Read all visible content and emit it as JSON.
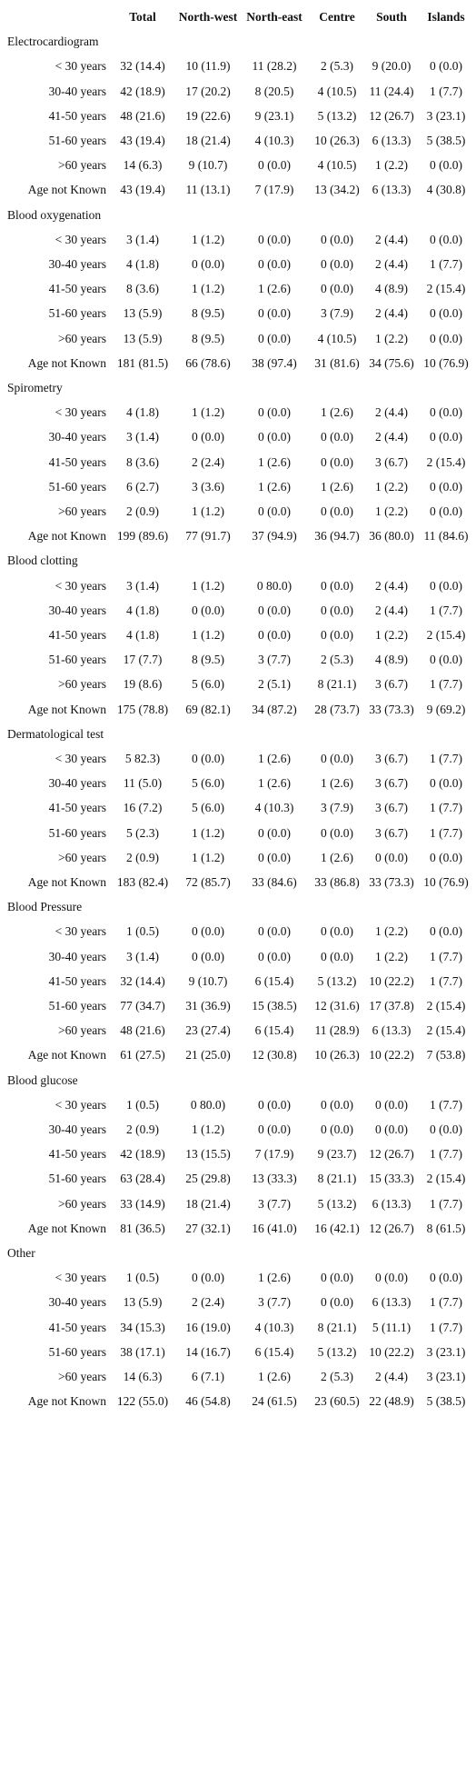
{
  "header": {
    "columns": [
      "Total",
      "North-west",
      "North-east",
      "Centre",
      "South",
      "Islands"
    ]
  },
  "sections": [
    {
      "title": "Electrocardiogram",
      "rows": [
        {
          "label": "< 30 years",
          "cells": [
            "32 (14.4)",
            "10 (11.9)",
            "11 (28.2)",
            "2 (5.3)",
            "9 (20.0)",
            "0 (0.0)"
          ]
        },
        {
          "label": "30-40 years",
          "cells": [
            "42 (18.9)",
            "17 (20.2)",
            "8 (20.5)",
            "4 (10.5)",
            "11 (24.4)",
            "1 (7.7)"
          ]
        },
        {
          "label": "41-50 years",
          "cells": [
            "48 (21.6)",
            "19 (22.6)",
            "9 (23.1)",
            "5 (13.2)",
            "12 (26.7)",
            "3 (23.1)"
          ]
        },
        {
          "label": "51-60 years",
          "cells": [
            "43 (19.4)",
            "18 (21.4)",
            "4 (10.3)",
            "10 (26.3)",
            "6 (13.3)",
            "5 (38.5)"
          ]
        },
        {
          "label": ">60 years",
          "cells": [
            "14 (6.3)",
            "9 (10.7)",
            "0 (0.0)",
            "4 (10.5)",
            "1 (2.2)",
            "0 (0.0)"
          ]
        },
        {
          "label": "Age not Known",
          "cells": [
            "43 (19.4)",
            "11 (13.1)",
            "7 (17.9)",
            "13 (34.2)",
            "6 (13.3)",
            "4 (30.8)"
          ]
        }
      ]
    },
    {
      "title": "Blood oxygenation",
      "rows": [
        {
          "label": "< 30 years",
          "cells": [
            "3 (1.4)",
            "1 (1.2)",
            "0 (0.0)",
            "0 (0.0)",
            "2 (4.4)",
            "0 (0.0)"
          ]
        },
        {
          "label": "30-40 years",
          "cells": [
            "4 (1.8)",
            "0 (0.0)",
            "0 (0.0)",
            "0 (0.0)",
            "2 (4.4)",
            "1 (7.7)"
          ]
        },
        {
          "label": "41-50 years",
          "cells": [
            "8 (3.6)",
            "1 (1.2)",
            "1 (2.6)",
            "0 (0.0)",
            "4 (8.9)",
            "2 (15.4)"
          ]
        },
        {
          "label": "51-60 years",
          "cells": [
            "13 (5.9)",
            "8 (9.5)",
            "0 (0.0)",
            "3 (7.9)",
            "2 (4.4)",
            "0 (0.0)"
          ]
        },
        {
          "label": ">60 years",
          "cells": [
            "13 (5.9)",
            "8 (9.5)",
            "0 (0.0)",
            "4 (10.5)",
            "1 (2.2)",
            "0 (0.0)"
          ]
        },
        {
          "label": "Age not Known",
          "cells": [
            "181 (81.5)",
            "66 (78.6)",
            "38 (97.4)",
            "31 (81.6)",
            "34 (75.6)",
            "10 (76.9)"
          ]
        }
      ]
    },
    {
      "title": "Spirometry",
      "rows": [
        {
          "label": "< 30 years",
          "cells": [
            "4 (1.8)",
            "1 (1.2)",
            "0 (0.0)",
            "1 (2.6)",
            "2 (4.4)",
            "0 (0.0)"
          ]
        },
        {
          "label": "30-40 years",
          "cells": [
            "3 (1.4)",
            "0 (0.0)",
            "0 (0.0)",
            "0 (0.0)",
            "2 (4.4)",
            "0 (0.0)"
          ]
        },
        {
          "label": "41-50 years",
          "cells": [
            "8 (3.6)",
            "2 (2.4)",
            "1 (2.6)",
            "0 (0.0)",
            "3 (6.7)",
            "2 (15.4)"
          ]
        },
        {
          "label": "51-60 years",
          "cells": [
            "6 (2.7)",
            "3 (3.6)",
            "1 (2.6)",
            "1 (2.6)",
            "1 (2.2)",
            "0 (0.0)"
          ]
        },
        {
          "label": ">60 years",
          "cells": [
            "2 (0.9)",
            "1 (1.2)",
            "0 (0.0)",
            "0 (0.0)",
            "1 (2.2)",
            "0 (0.0)"
          ]
        },
        {
          "label": "Age not Known",
          "cells": [
            "199 (89.6)",
            "77 (91.7)",
            "37 (94.9)",
            "36 (94.7)",
            "36 (80.0)",
            "11 (84.6)"
          ]
        }
      ]
    },
    {
      "title": "Blood clotting",
      "rows": [
        {
          "label": "< 30 years",
          "cells": [
            "3 (1.4)",
            "1 (1.2)",
            "0 80.0)",
            "0 (0.0)",
            "2 (4.4)",
            "0 (0.0)"
          ]
        },
        {
          "label": "30-40 years",
          "cells": [
            "4 (1.8)",
            "0 (0.0)",
            "0 (0.0)",
            "0 (0.0)",
            "2 (4.4)",
            "1 (7.7)"
          ]
        },
        {
          "label": "41-50 years",
          "cells": [
            "4 (1.8)",
            "1 (1.2)",
            "0 (0.0)",
            "0 (0.0)",
            "1 (2.2)",
            "2 (15.4)"
          ]
        },
        {
          "label": "51-60 years",
          "cells": [
            "17 (7.7)",
            "8 (9.5)",
            "3 (7.7)",
            "2 (5.3)",
            "4 (8.9)",
            "0 (0.0)"
          ]
        },
        {
          "label": ">60 years",
          "cells": [
            "19 (8.6)",
            "5 (6.0)",
            "2 (5.1)",
            "8 (21.1)",
            "3 (6.7)",
            "1 (7.7)"
          ]
        },
        {
          "label": "Age not Known",
          "cells": [
            "175 (78.8)",
            "69 (82.1)",
            "34 (87.2)",
            "28 (73.7)",
            "33 (73.3)",
            "9 (69.2)"
          ]
        }
      ]
    },
    {
      "title": "Dermatological test",
      "rows": [
        {
          "label": "< 30 years",
          "cells": [
            "5 82.3)",
            "0 (0.0)",
            "1 (2.6)",
            "0 (0.0)",
            "3 (6.7)",
            "1 (7.7)"
          ]
        },
        {
          "label": "30-40 years",
          "cells": [
            "11 (5.0)",
            "5 (6.0)",
            "1 (2.6)",
            "1 (2.6)",
            "3 (6.7)",
            "0 (0.0)"
          ]
        },
        {
          "label": "41-50 years",
          "cells": [
            "16 (7.2)",
            "5 (6.0)",
            "4 (10.3)",
            "3 (7.9)",
            "3 (6.7)",
            "1 (7.7)"
          ]
        },
        {
          "label": "51-60 years",
          "cells": [
            "5 (2.3)",
            "1 (1.2)",
            "0 (0.0)",
            "0 (0.0)",
            "3 (6.7)",
            "1 (7.7)"
          ]
        },
        {
          "label": ">60 years",
          "cells": [
            "2 (0.9)",
            "1 (1.2)",
            "0 (0.0)",
            "1 (2.6)",
            "0 (0.0)",
            "0 (0.0)"
          ]
        },
        {
          "label": "Age not Known",
          "cells": [
            "183 (82.4)",
            "72 (85.7)",
            "33 (84.6)",
            "33 (86.8)",
            "33 (73.3)",
            "10 (76.9)"
          ]
        }
      ]
    },
    {
      "title": "Blood Pressure",
      "rows": [
        {
          "label": "< 30 years",
          "cells": [
            "1 (0.5)",
            "0 (0.0)",
            "0 (0.0)",
            "0 (0.0)",
            "1 (2.2)",
            "0 (0.0)"
          ]
        },
        {
          "label": "30-40 years",
          "cells": [
            "3 (1.4)",
            "0 (0.0)",
            "0 (0.0)",
            "0 (0.0)",
            "1 (2.2)",
            "1 (7.7)"
          ]
        },
        {
          "label": "41-50 years",
          "cells": [
            "32 (14.4)",
            "9 (10.7)",
            "6 (15.4)",
            "5 (13.2)",
            "10 (22.2)",
            "1 (7.7)"
          ]
        },
        {
          "label": "51-60 years",
          "cells": [
            "77 (34.7)",
            "31 (36.9)",
            "15 (38.5)",
            "12 (31.6)",
            "17 (37.8)",
            "2 (15.4)"
          ]
        },
        {
          "label": ">60 years",
          "cells": [
            "48 (21.6)",
            "23 (27.4)",
            "6 (15.4)",
            "11 (28.9)",
            "6 (13.3)",
            "2 (15.4)"
          ]
        },
        {
          "label": "Age not Known",
          "cells": [
            "61 (27.5)",
            "21 (25.0)",
            "12 (30.8)",
            "10 (26.3)",
            "10 (22.2)",
            "7 (53.8)"
          ]
        }
      ]
    },
    {
      "title": "Blood glucose",
      "rows": [
        {
          "label": "< 30 years",
          "cells": [
            "1 (0.5)",
            "0 80.0)",
            "0 (0.0)",
            "0 (0.0)",
            "0 (0.0)",
            "1 (7.7)"
          ]
        },
        {
          "label": "30-40 years",
          "cells": [
            "2 (0.9)",
            "1 (1.2)",
            "0 (0.0)",
            "0 (0.0)",
            "0 (0.0)",
            "0 (0.0)"
          ]
        },
        {
          "label": "41-50 years",
          "cells": [
            "42 (18.9)",
            "13 (15.5)",
            "7 (17.9)",
            "9 (23.7)",
            "12 (26.7)",
            "1 (7.7)"
          ]
        },
        {
          "label": "51-60 years",
          "cells": [
            "63 (28.4)",
            "25 (29.8)",
            "13 (33.3)",
            "8 (21.1)",
            "15 (33.3)",
            "2 (15.4)"
          ]
        },
        {
          "label": ">60 years",
          "cells": [
            "33 (14.9)",
            "18 (21.4)",
            "3 (7.7)",
            "5 (13.2)",
            "6 (13.3)",
            "1 (7.7)"
          ]
        },
        {
          "label": "Age not Known",
          "cells": [
            "81 (36.5)",
            "27 (32.1)",
            "16 (41.0)",
            "16 (42.1)",
            "12 (26.7)",
            "8 (61.5)"
          ]
        }
      ]
    },
    {
      "title": "Other",
      "rows": [
        {
          "label": "< 30 years",
          "cells": [
            "1 (0.5)",
            "0 (0.0)",
            "1 (2.6)",
            "0 (0.0)",
            "0 (0.0)",
            "0 (0.0)"
          ]
        },
        {
          "label": "30-40 years",
          "cells": [
            "13 (5.9)",
            "2 (2.4)",
            "3 (7.7)",
            "0 (0.0)",
            "6 (13.3)",
            "1 (7.7)"
          ]
        },
        {
          "label": "41-50 years",
          "cells": [
            "34 (15.3)",
            "16 (19.0)",
            "4 (10.3)",
            "8 (21.1)",
            "5 (11.1)",
            "1 (7.7)"
          ]
        },
        {
          "label": "51-60 years",
          "cells": [
            "38 (17.1)",
            "14 (16.7)",
            "6 (15.4)",
            "5 (13.2)",
            "10 (22.2)",
            "3 (23.1)"
          ]
        },
        {
          "label": ">60 years",
          "cells": [
            "14 (6.3)",
            "6 (7.1)",
            "1 (2.6)",
            "2 (5.3)",
            "2 (4.4)",
            "3 (23.1)"
          ]
        },
        {
          "label": "Age not Known",
          "cells": [
            "122 (55.0)",
            "46 (54.8)",
            "24 (61.5)",
            "23 (60.5)",
            "22 (48.9)",
            "5 (38.5)"
          ]
        }
      ]
    }
  ]
}
